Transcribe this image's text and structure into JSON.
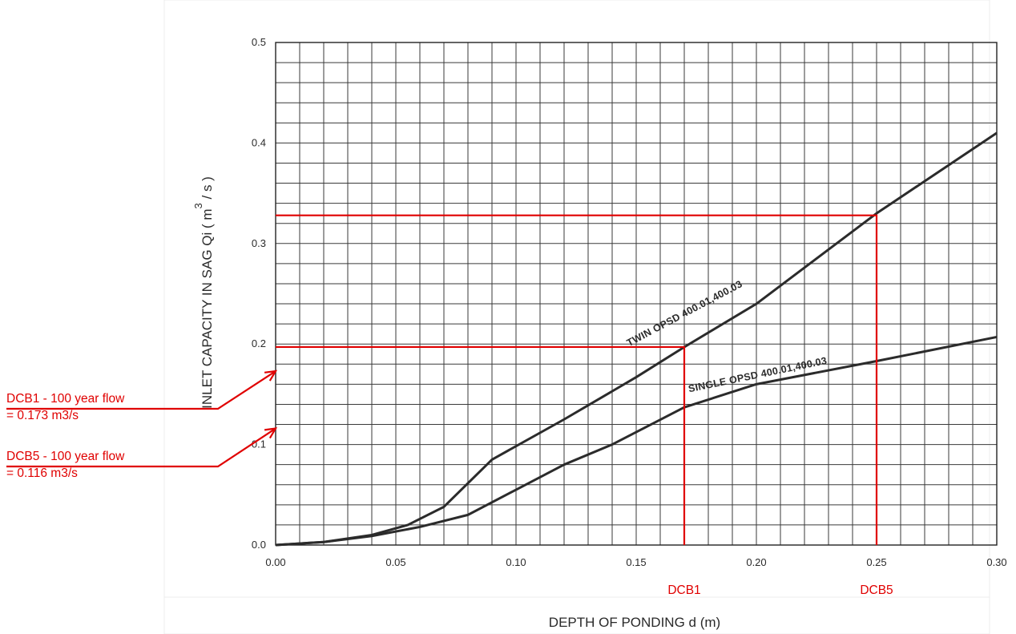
{
  "chart_data": {
    "type": "line",
    "xlabel": "DEPTH OF PONDING  d (m)",
    "ylabel": "INLET CAPACITY IN SAG   Qi  ( m",
    "ylabel_superscript": "3",
    "ylabel_suffix": " / s )",
    "xlim": [
      0.0,
      0.3
    ],
    "ylim": [
      0.0,
      0.5
    ],
    "x_ticks": [
      "0.00",
      "0.05",
      "0.10",
      "0.15",
      "0.20",
      "0.25",
      "0.30"
    ],
    "y_ticks": [
      "0.0",
      "0.1",
      "0.2",
      "0.3",
      "0.4",
      "0.5"
    ],
    "grid": true,
    "series": [
      {
        "name": "TWIN  OPSD  400.01,400.03",
        "x": [
          0.0,
          0.02,
          0.04,
          0.055,
          0.07,
          0.09,
          0.12,
          0.15,
          0.17,
          0.2,
          0.25,
          0.3
        ],
        "y": [
          0.0,
          0.003,
          0.01,
          0.02,
          0.038,
          0.085,
          0.125,
          0.167,
          0.197,
          0.24,
          0.33,
          0.41
        ]
      },
      {
        "name": "SINGLE  OPSD  400.01,400.03",
        "x": [
          0.0,
          0.02,
          0.04,
          0.06,
          0.08,
          0.1,
          0.12,
          0.14,
          0.17,
          0.2,
          0.25,
          0.3
        ],
        "y": [
          0.0,
          0.003,
          0.009,
          0.018,
          0.03,
          0.055,
          0.08,
          0.1,
          0.137,
          0.16,
          0.183,
          0.207
        ]
      }
    ],
    "reference_lines": [
      {
        "label": "DCB1",
        "x": 0.17,
        "y": 0.197
      },
      {
        "label": "DCB5",
        "x": 0.25,
        "y": 0.328
      }
    ],
    "annotations": [
      {
        "line1": "DCB1 - 100 year flow",
        "line2": "= 0.173 m3/s",
        "points_to_y": 0.173
      },
      {
        "line1": "DCB5 - 100 year flow",
        "line2": "= 0.116 m3/s",
        "points_to_y": 0.116
      }
    ]
  }
}
